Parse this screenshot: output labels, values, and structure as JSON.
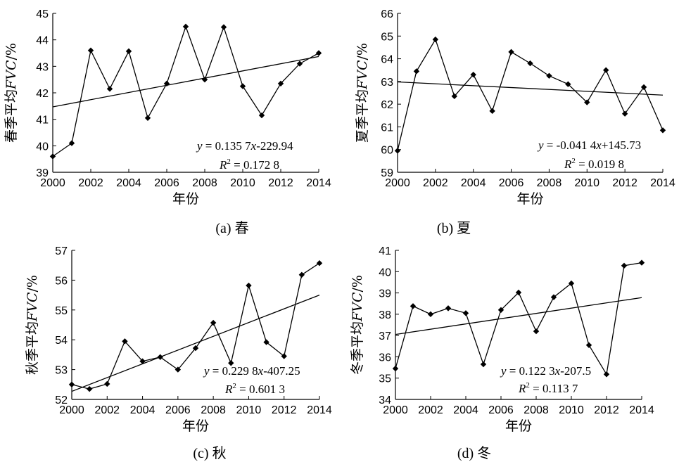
{
  "chart_data": [
    {
      "type": "line",
      "caption": "(a) 春",
      "xlabel": "年份",
      "ylabel": "春季平均",
      "ylabel_tail": "FVC",
      "ylabel_unit": "/%",
      "xlim": [
        2000,
        2014
      ],
      "ylim": [
        39,
        45
      ],
      "xticks": [
        "2000",
        "2002",
        "2004",
        "2006",
        "2008",
        "2010",
        "2012",
        "2014"
      ],
      "yticks": [
        "39",
        "40",
        "41",
        "42",
        "43",
        "44",
        "45"
      ],
      "x": [
        2000,
        2001,
        2002,
        2003,
        2004,
        2005,
        2006,
        2007,
        2008,
        2009,
        2010,
        2011,
        2012,
        2013,
        2014
      ],
      "values": [
        39.6,
        40.1,
        43.6,
        42.15,
        43.57,
        41.05,
        42.35,
        44.5,
        42.5,
        44.48,
        42.25,
        41.15,
        42.35,
        43.1,
        43.5
      ],
      "trend": [
        41.47,
        43.37
      ],
      "equation": {
        "y": "y",
        "text": " = 0.135 7",
        "x": "x",
        "rest": "-229.94"
      },
      "r2": {
        "r": "R",
        "sup": "2",
        "text": " = 0.172 8"
      }
    },
    {
      "type": "line",
      "caption": "(b) 夏",
      "xlabel": "年份",
      "ylabel": "夏季平均",
      "ylabel_tail": "FVC",
      "ylabel_unit": "/%",
      "xlim": [
        2000,
        2014
      ],
      "ylim": [
        59,
        66
      ],
      "xticks": [
        "2000",
        "2002",
        "2004",
        "2006",
        "2008",
        "2010",
        "2012",
        "2014"
      ],
      "yticks": [
        "59",
        "60",
        "61",
        "62",
        "63",
        "64",
        "65",
        "66"
      ],
      "x": [
        2000,
        2001,
        2002,
        2003,
        2004,
        2005,
        2006,
        2007,
        2008,
        2009,
        2010,
        2011,
        2012,
        2013,
        2014
      ],
      "values": [
        59.95,
        63.45,
        64.85,
        62.35,
        63.3,
        61.7,
        64.3,
        63.8,
        63.25,
        62.88,
        62.08,
        63.5,
        61.58,
        62.75,
        60.85
      ],
      "trend": [
        62.98,
        62.4
      ],
      "equation": {
        "y": "y",
        "text": " = -0.041 4",
        "x": "x",
        "rest": "+145.73"
      },
      "r2": {
        "r": "R",
        "sup": "2",
        "text": " = 0.019 8"
      }
    },
    {
      "type": "line",
      "caption": "(c) 秋",
      "xlabel": "年份",
      "ylabel": "秋季平均",
      "ylabel_tail": "FVC",
      "ylabel_unit": "/%",
      "xlim": [
        2000,
        2014
      ],
      "ylim": [
        52,
        57
      ],
      "xticks": [
        "2000",
        "2002",
        "2004",
        "2006",
        "2008",
        "2010",
        "2012",
        "2014"
      ],
      "yticks": [
        "52",
        "53",
        "54",
        "55",
        "56",
        "57"
      ],
      "x": [
        2000,
        2001,
        2002,
        2003,
        2004,
        2005,
        2006,
        2007,
        2008,
        2009,
        2010,
        2011,
        2012,
        2013,
        2014
      ],
      "values": [
        52.5,
        52.35,
        52.52,
        53.95,
        53.28,
        53.42,
        53.0,
        53.72,
        54.57,
        53.22,
        55.82,
        53.92,
        53.45,
        56.18,
        56.57
      ],
      "trend": [
        52.27,
        55.5
      ],
      "equation": {
        "y": "y",
        "text": " = 0.229 8",
        "x": "x",
        "rest": "-407.25"
      },
      "r2": {
        "r": "R",
        "sup": "2",
        "text": " = 0.601 3"
      }
    },
    {
      "type": "line",
      "caption": "(d) 冬",
      "xlabel": "年份",
      "ylabel": "冬季平均",
      "ylabel_tail": "FVC",
      "ylabel_unit": "/%",
      "xlim": [
        2000,
        2014
      ],
      "ylim": [
        34,
        41
      ],
      "xticks": [
        "2000",
        "2002",
        "2004",
        "2006",
        "2008",
        "2010",
        "2012",
        "2014"
      ],
      "yticks": [
        "34",
        "35",
        "36",
        "37",
        "38",
        "39",
        "40",
        "41"
      ],
      "x": [
        2000,
        2001,
        2002,
        2003,
        2004,
        2005,
        2006,
        2007,
        2008,
        2009,
        2010,
        2011,
        2012,
        2013,
        2014
      ],
      "values": [
        35.45,
        38.38,
        38.0,
        38.28,
        38.05,
        35.65,
        38.2,
        39.02,
        37.2,
        38.8,
        39.45,
        36.55,
        35.18,
        40.28,
        40.42
      ],
      "trend": [
        37.05,
        38.78
      ],
      "equation": {
        "y": "y",
        "text": " = 0.122 3",
        "x": "x",
        "rest": "-207.5"
      },
      "r2": {
        "r": "R",
        "sup": "2",
        "text": " = 0.113 7"
      }
    }
  ]
}
